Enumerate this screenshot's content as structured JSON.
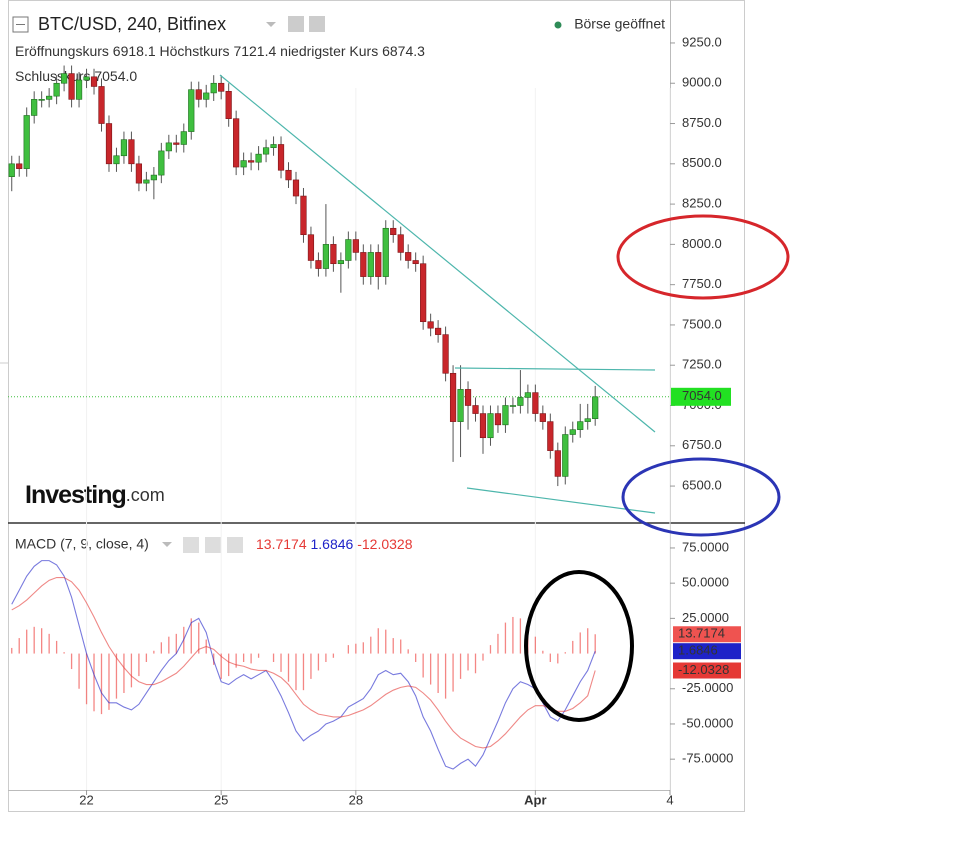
{
  "chart_data": [
    {
      "type": "candlestick",
      "title": "BTC/USD, 240, Bitfinex",
      "status": "Börse geöffnet",
      "ohlc_names": [
        "Eröffnungskurs",
        "Höchstkurs",
        "niedrigster Kurs",
        "Schlusskurs"
      ],
      "close_label": "7054.0",
      "logo": "Investing",
      "logo_suffix": ".com",
      "up_color": "#3fbf3f",
      "down_color": "#c8262b",
      "xlim": [
        -0.5,
        88
      ],
      "xticks": [
        {
          "value": 10,
          "label": "22"
        },
        {
          "value": 28,
          "label": "25"
        },
        {
          "value": 46,
          "label": "28"
        },
        {
          "value": 70,
          "label": "Apr"
        },
        {
          "value": 88,
          "label": "4"
        }
      ],
      "ylim": [
        6277,
        9467
      ],
      "yticks": [
        {
          "value": 6500,
          "label": "6500.0"
        },
        {
          "value": 6750,
          "label": "6750.0"
        },
        {
          "value": 7000,
          "label": "7000.0"
        },
        {
          "value": 7250,
          "label": "7250.0"
        },
        {
          "value": 7500,
          "label": "7500.0"
        },
        {
          "value": 7750,
          "label": "7750.0"
        },
        {
          "value": 8000,
          "label": "8000.0"
        },
        {
          "value": 8250,
          "label": "8250.0"
        },
        {
          "value": 8500,
          "label": "8500.0"
        },
        {
          "value": 8750,
          "label": "8750.0"
        },
        {
          "value": 9000,
          "label": "9000.0"
        },
        {
          "value": 9250,
          "label": "9250.0"
        }
      ],
      "open": [
        8420,
        8500,
        8470,
        8800,
        8900,
        8900,
        8920,
        9000,
        9060,
        8900,
        9020,
        9040,
        8980,
        8750,
        8500,
        8550,
        8650,
        8500,
        8380,
        8400,
        8430,
        8580,
        8630,
        8620,
        8700,
        8960,
        8900,
        8940,
        9000,
        8950,
        8780,
        8480,
        8520,
        8510,
        8560,
        8600,
        8620,
        8460,
        8400,
        8300,
        8060,
        7900,
        7850,
        8000,
        7880,
        7900,
        8030,
        7950,
        7800,
        7950,
        7800,
        8100,
        8060,
        7950,
        7900,
        7880,
        7520,
        7480,
        7440,
        7200,
        6900,
        7100,
        7000,
        6950,
        6800,
        6950,
        6880,
        7000,
        7000,
        7050,
        7080,
        6950,
        6900,
        6720,
        6560,
        6820,
        6850,
        6900,
        6918.1
      ],
      "high": [
        8550,
        8550,
        8850,
        8950,
        8950,
        8970,
        9050,
        9110,
        9110,
        9070,
        9090,
        9090,
        9030,
        8800,
        8600,
        8700,
        8700,
        8550,
        8450,
        8480,
        8630,
        8680,
        8680,
        8750,
        9010,
        9010,
        8990,
        9050,
        9050,
        9000,
        8830,
        8570,
        8570,
        8610,
        8650,
        8670,
        8670,
        8510,
        8450,
        8350,
        8110,
        7950,
        8250,
        8050,
        7950,
        8080,
        8080,
        8000,
        8000,
        8000,
        8150,
        8150,
        8110,
        8000,
        7950,
        7930,
        7570,
        7530,
        7490,
        7250,
        7250,
        7150,
        7050,
        7000,
        7000,
        7000,
        7050,
        7050,
        7220,
        7130,
        7130,
        7000,
        6950,
        6770,
        6870,
        6900,
        7010,
        7010,
        7121.4
      ],
      "low": [
        8330,
        8420,
        8420,
        8750,
        8850,
        8850,
        8870,
        8950,
        8850,
        8850,
        8970,
        8930,
        8700,
        8450,
        8450,
        8500,
        8450,
        8330,
        8330,
        8280,
        8380,
        8530,
        8570,
        8570,
        8650,
        8850,
        8850,
        8890,
        8900,
        8730,
        8430,
        8430,
        8460,
        8460,
        8510,
        8550,
        8410,
        8350,
        8250,
        8010,
        7850,
        7800,
        7800,
        7830,
        7700,
        7850,
        7900,
        7750,
        7750,
        7720,
        7750,
        8010,
        7900,
        7850,
        7830,
        7470,
        7430,
        7390,
        7150,
        6650,
        6680,
        6850,
        6900,
        6700,
        6750,
        6830,
        6830,
        6950,
        6950,
        6950,
        6900,
        6850,
        6670,
        6500,
        6510,
        6770,
        6800,
        6850,
        6874.3
      ],
      "close": [
        8500,
        8470,
        8800,
        8900,
        8900,
        8920,
        9000,
        9060,
        8900,
        9020,
        9040,
        8980,
        8750,
        8500,
        8550,
        8650,
        8500,
        8380,
        8400,
        8430,
        8580,
        8630,
        8620,
        8700,
        8960,
        8900,
        8940,
        9000,
        8950,
        8780,
        8480,
        8520,
        8510,
        8560,
        8600,
        8620,
        8460,
        8400,
        8300,
        8060,
        7900,
        7850,
        8000,
        7880,
        7900,
        8030,
        7950,
        7800,
        7950,
        7800,
        8100,
        8060,
        7950,
        7900,
        7880,
        7520,
        7480,
        7440,
        7200,
        6900,
        7100,
        7000,
        6950,
        6800,
        6950,
        6880,
        7000,
        7000,
        7050,
        7080,
        6950,
        6900,
        6720,
        6560,
        6820,
        6850,
        6900,
        6918.1,
        7054
      ]
    },
    {
      "type": "macd",
      "title": "MACD (7, 9, close, 4)",
      "xlim": [
        -0.5,
        88
      ],
      "ylim": [
        -96.9,
        90.6
      ],
      "yticks": [
        {
          "value": -75,
          "label": "-75.0000"
        },
        {
          "value": -50,
          "label": "-50.0000"
        },
        {
          "value": -25,
          "label": "-25.0000"
        },
        {
          "value": 25,
          "label": "25.0000"
        },
        {
          "value": 50,
          "label": "50.0000"
        },
        {
          "value": 75,
          "label": "75.0000"
        }
      ],
      "series": [
        {
          "style": "histogram",
          "color": "#ef5350",
          "values": [
            4,
            11,
            17,
            19,
            18,
            14,
            9,
            1,
            -11,
            -25,
            -36,
            -41,
            -43,
            -40,
            -32,
            -28,
            -24,
            -16,
            -6,
            2,
            8,
            12,
            14,
            19,
            25,
            22,
            10,
            -8,
            -18,
            -16,
            -10,
            -6,
            -7,
            -3,
            0,
            -6,
            -13,
            -20,
            -26,
            -26,
            -18,
            -12,
            -6,
            -3,
            0,
            6,
            7,
            8,
            12,
            18,
            17,
            11,
            10,
            3,
            -6,
            -17,
            -22,
            -28,
            -32,
            -27,
            -18,
            -12,
            -14,
            -5,
            6,
            14,
            22,
            26,
            25,
            18,
            12,
            2,
            -6,
            -7,
            1,
            9,
            15,
            18,
            13.7174
          ]
        },
        {
          "style": "line",
          "color": "#1e22c8",
          "values": [
            35,
            45,
            55,
            62,
            66,
            66,
            63,
            55,
            40,
            20,
            0,
            -15,
            -28,
            -35,
            -35,
            -38,
            -40,
            -36,
            -28,
            -20,
            -12,
            -5,
            0,
            10,
            22,
            25,
            15,
            -5,
            -20,
            -22,
            -18,
            -15,
            -18,
            -15,
            -12,
            -20,
            -30,
            -42,
            -55,
            -62,
            -58,
            -55,
            -50,
            -48,
            -45,
            -38,
            -35,
            -32,
            -25,
            -15,
            -12,
            -15,
            -14,
            -20,
            -30,
            -45,
            -55,
            -68,
            -80,
            -82,
            -78,
            -75,
            -80,
            -72,
            -60,
            -48,
            -35,
            -25,
            -20,
            -22,
            -25,
            -35,
            -45,
            -48,
            -40,
            -30,
            -20,
            -12,
            1.6846
          ]
        },
        {
          "style": "line",
          "color": "#e53935",
          "values": [
            31,
            34,
            38,
            43,
            48,
            52,
            54,
            54,
            51,
            45,
            36,
            26,
            15,
            5,
            -3,
            -10,
            -16,
            -20,
            -22,
            -22,
            -20,
            -17,
            -14,
            -9,
            -3,
            3,
            5,
            3,
            -2,
            -6,
            -8,
            -9,
            -11,
            -12,
            -12,
            -14,
            -17,
            -22,
            -29,
            -36,
            -40,
            -43,
            -44,
            -45,
            -45,
            -44,
            -42,
            -40,
            -37,
            -33,
            -29,
            -26,
            -24,
            -23,
            -24,
            -28,
            -33,
            -40,
            -48,
            -55,
            -60,
            -63,
            -66,
            -67,
            -66,
            -62,
            -57,
            -51,
            -45,
            -40,
            -37,
            -37,
            -39,
            -41,
            -41,
            -39,
            -35,
            -30,
            -12.0328
          ]
        }
      ]
    }
  ]
}
